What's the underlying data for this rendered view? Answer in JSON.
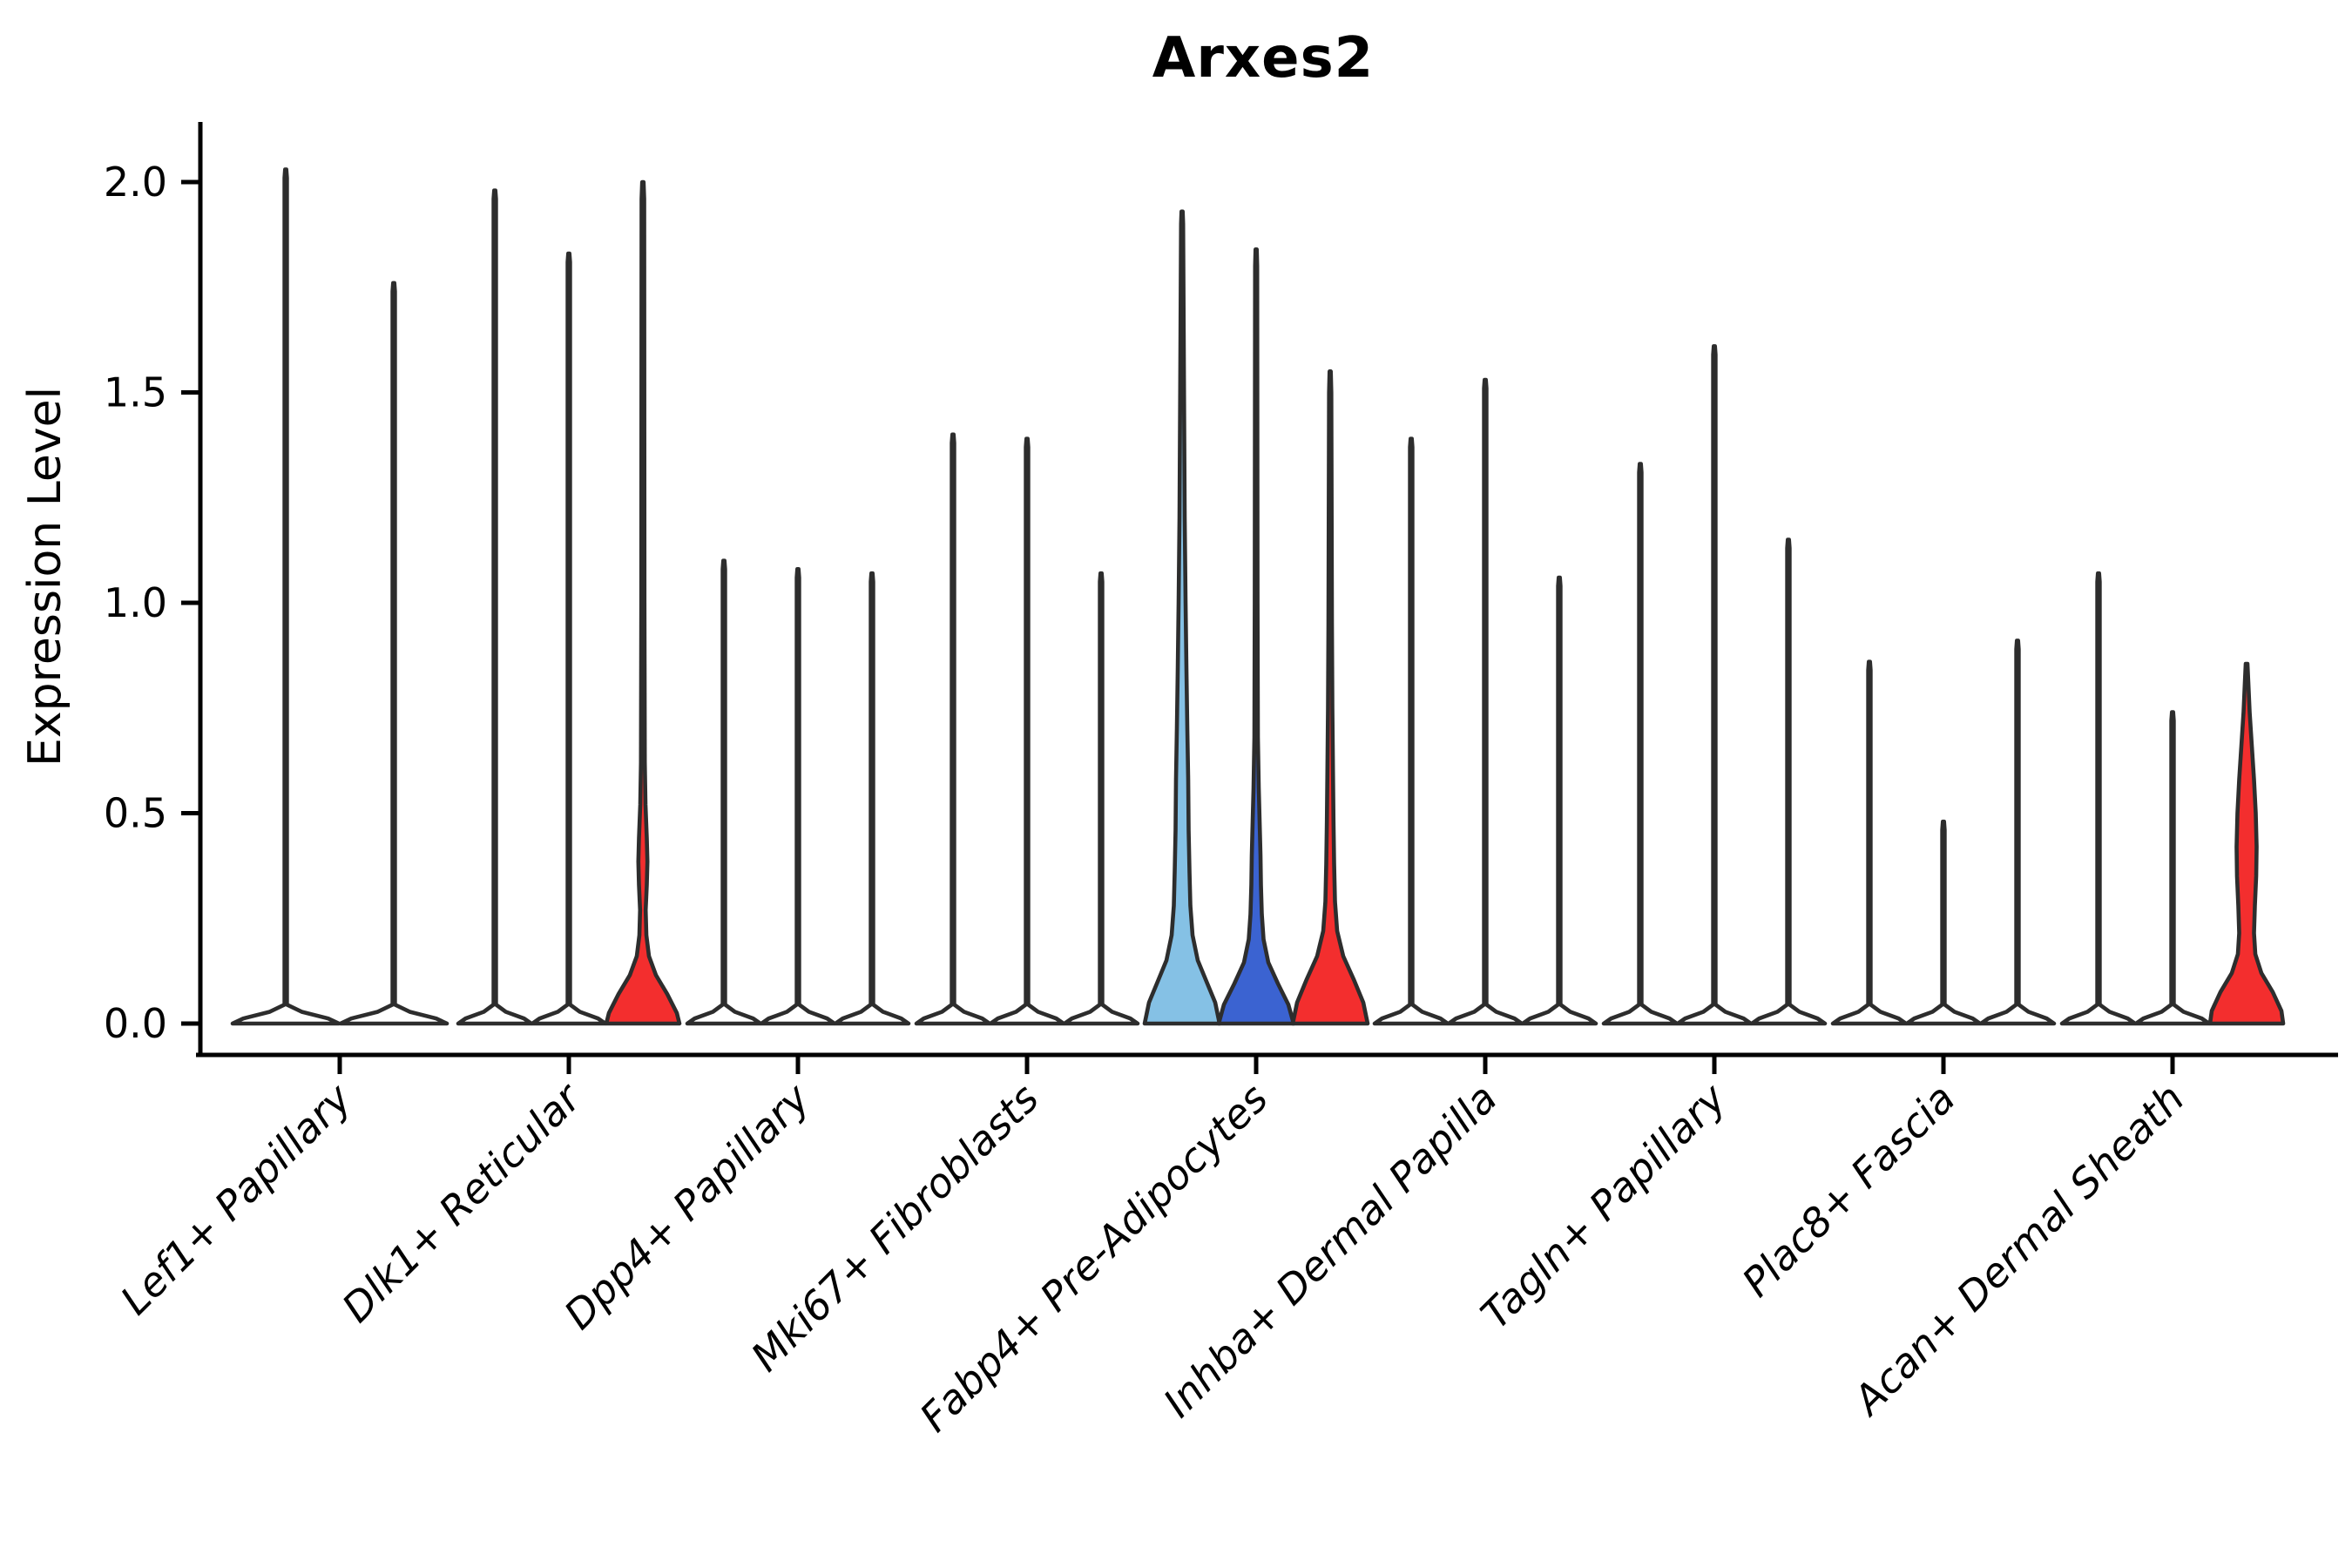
{
  "chart_data": {
    "type": "violin",
    "title": "Arxes2",
    "ylabel": "Expression Level",
    "xlabel": "",
    "yticks": [
      0.0,
      0.5,
      1.0,
      1.5,
      2.0
    ],
    "ytick_labels": [
      "0.0",
      "0.5",
      "1.0",
      "1.5",
      "2.0"
    ],
    "ylim": [
      -0.07,
      2.14
    ],
    "grid": false,
    "legend": "none",
    "categories": [
      "Lef1+ Papillary",
      "Dlk1+ Reticular",
      "Dpp4+ Papillary",
      "Mki67+ Fibroblasts",
      "Fabp4+ Pre-Adipocytes",
      "Inhba+ Dermal Papilla",
      "Tagln+ Papillary",
      "Plac8+ Fascia",
      "Acan+ Dermal Sheath"
    ],
    "colors": {
      "default": "#ffffff",
      "lightblue": "#85C1E5",
      "blue": "#3B63D1",
      "red": "#F32E2E",
      "outline": "#2d2d2d"
    },
    "groups": [
      {
        "category": "Lef1+ Papillary",
        "violins": [
          {
            "max": 2.03,
            "color": "default",
            "pancake_halfwidth": 61
          },
          {
            "max": 1.76,
            "color": "default",
            "pancake_halfwidth": 61
          }
        ]
      },
      {
        "category": "Dlk1+ Reticular",
        "violins": [
          {
            "max": 1.98,
            "color": "default"
          },
          {
            "max": 1.83,
            "color": "default"
          },
          {
            "max": 2.0,
            "color": "red",
            "profile": [
              [
                0,
                42
              ],
              [
                0.025,
                39
              ],
              [
                0.07,
                28
              ],
              [
                0.115,
                15
              ],
              [
                0.16,
                7
              ],
              [
                0.21,
                4
              ],
              [
                0.27,
                3.2
              ],
              [
                0.33,
                4.5
              ],
              [
                0.385,
                5.2
              ],
              [
                0.44,
                4.5
              ],
              [
                0.52,
                3
              ],
              [
                0.62,
                2.2
              ],
              [
                1.0,
                1.8
              ],
              [
                1.96,
                1.5
              ],
              [
                2.0,
                0.8
              ]
            ]
          }
        ]
      },
      {
        "category": "Dpp4+ Papillary",
        "violins": [
          {
            "max": 1.1,
            "color": "default"
          },
          {
            "max": 1.08,
            "color": "default"
          },
          {
            "max": 1.07,
            "color": "default"
          }
        ]
      },
      {
        "category": "Mki67+ Fibroblasts",
        "violins": [
          {
            "max": 1.4,
            "color": "default"
          },
          {
            "max": 1.39,
            "color": "default"
          },
          {
            "max": 1.07,
            "color": "default"
          }
        ]
      },
      {
        "category": "Fabp4+ Pre-Adipocytes",
        "violins": [
          {
            "max": 1.93,
            "color": "lightblue",
            "profile": [
              [
                0,
                43
              ],
              [
                0.05,
                38
              ],
              [
                0.1,
                28
              ],
              [
                0.15,
                18
              ],
              [
                0.21,
                12
              ],
              [
                0.28,
                9.5
              ],
              [
                0.36,
                8.5
              ],
              [
                0.46,
                7.5
              ],
              [
                0.58,
                7
              ],
              [
                0.7,
                6
              ],
              [
                0.84,
                5
              ],
              [
                1.0,
                4
              ],
              [
                1.2,
                3
              ],
              [
                1.5,
                2.2
              ],
              [
                1.9,
                1.2
              ],
              [
                1.93,
                0.7
              ]
            ]
          },
          {
            "max": 1.84,
            "color": "blue",
            "profile": [
              [
                0,
                43
              ],
              [
                0.045,
                37
              ],
              [
                0.095,
                25
              ],
              [
                0.145,
                14
              ],
              [
                0.2,
                8.5
              ],
              [
                0.26,
                6.5
              ],
              [
                0.33,
                5.5
              ],
              [
                0.4,
                5
              ],
              [
                0.48,
                4
              ],
              [
                0.56,
                3
              ],
              [
                0.68,
                2
              ],
              [
                1.0,
                1.6
              ],
              [
                1.8,
                1.2
              ],
              [
                1.84,
                0.7
              ]
            ]
          },
          {
            "max": 1.55,
            "color": "red",
            "profile": [
              [
                0,
                43
              ],
              [
                0.05,
                38
              ],
              [
                0.105,
                27
              ],
              [
                0.16,
                15
              ],
              [
                0.22,
                8
              ],
              [
                0.29,
                5.5
              ],
              [
                0.38,
                4.5
              ],
              [
                0.48,
                3.8
              ],
              [
                0.6,
                3.2
              ],
              [
                0.75,
                2.5
              ],
              [
                0.95,
                2
              ],
              [
                1.5,
                1.3
              ],
              [
                1.55,
                0.7
              ]
            ]
          }
        ]
      },
      {
        "category": "Inhba+ Dermal Papilla",
        "violins": [
          {
            "max": 1.39,
            "color": "default"
          },
          {
            "max": 1.53,
            "color": "default"
          },
          {
            "max": 1.06,
            "color": "default"
          }
        ]
      },
      {
        "category": "Tagln+ Papillary",
        "violins": [
          {
            "max": 1.33,
            "color": "default"
          },
          {
            "max": 1.61,
            "color": "default"
          },
          {
            "max": 1.15,
            "color": "default"
          }
        ]
      },
      {
        "category": "Plac8+ Fascia",
        "violins": [
          {
            "max": 0.86,
            "color": "default"
          },
          {
            "max": 0.48,
            "color": "default"
          },
          {
            "max": 0.91,
            "color": "default"
          }
        ]
      },
      {
        "category": "Acan+ Dermal Sheath",
        "violins": [
          {
            "max": 1.07,
            "color": "default"
          },
          {
            "max": 0.74,
            "color": "default"
          },
          {
            "max": 0.855,
            "color": "red",
            "profile": [
              [
                0,
                42
              ],
              [
                0.03,
                40
              ],
              [
                0.075,
                30
              ],
              [
                0.12,
                17
              ],
              [
                0.165,
                10
              ],
              [
                0.215,
                8.5
              ],
              [
                0.28,
                9.5
              ],
              [
                0.35,
                11
              ],
              [
                0.42,
                11.5
              ],
              [
                0.5,
                10.5
              ],
              [
                0.58,
                8.5
              ],
              [
                0.66,
                6
              ],
              [
                0.74,
                3.5
              ],
              [
                0.81,
                2
              ],
              [
                0.855,
                1
              ]
            ]
          }
        ]
      }
    ]
  }
}
